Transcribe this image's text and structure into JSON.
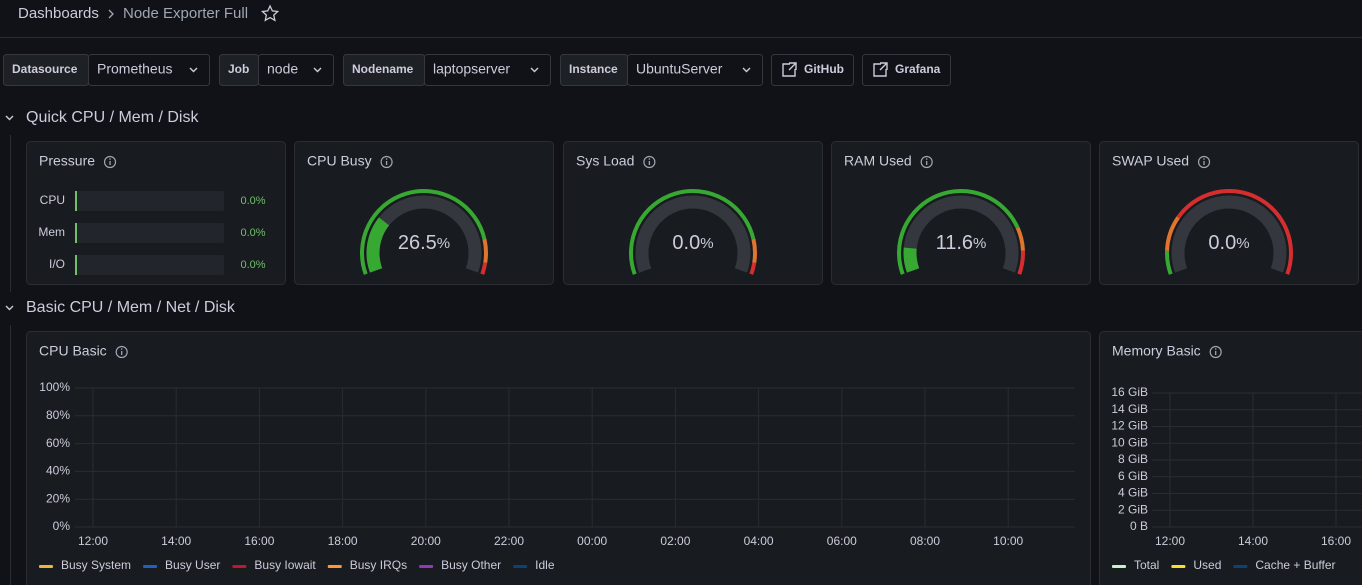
{
  "header": {
    "breadcrumb": [
      "Dashboards",
      "Node Exporter Full"
    ]
  },
  "variables": [
    {
      "label": "Datasource",
      "value": "Prometheus"
    },
    {
      "label": "Job",
      "value": "node"
    },
    {
      "label": "Nodename",
      "value": "laptopserver"
    },
    {
      "label": "Instance",
      "value": "UbuntuServer"
    }
  ],
  "links": [
    "GitHub",
    "Grafana"
  ],
  "rows": [
    {
      "title": "Quick CPU / Mem / Disk"
    },
    {
      "title": "Basic CPU / Mem / Net / Disk"
    }
  ],
  "pressure": {
    "title": "Pressure",
    "range": [
      0,
      100
    ],
    "color": "#73bf69",
    "bars": [
      {
        "label": "CPU",
        "value": 0,
        "value_label": "0.0%"
      },
      {
        "label": "Mem",
        "value": 0,
        "value_label": "0.0%"
      },
      {
        "label": "I/O",
        "value": 0,
        "value_label": "0.0%"
      }
    ]
  },
  "gauges": [
    {
      "title": "CPU Busy",
      "value": 26.5,
      "unit": "%",
      "range": [
        0,
        100
      ],
      "thresholds": [
        {
          "value": 0,
          "color": "#37a831"
        },
        {
          "value": 85,
          "color": "#e0752d"
        },
        {
          "value": 95,
          "color": "#d62e2e"
        }
      ]
    },
    {
      "title": "Sys Load",
      "value": 0,
      "value_label": "0.0",
      "unit": "%",
      "range": [
        0,
        100
      ],
      "thresholds": [
        {
          "value": 0,
          "color": "#37a831"
        },
        {
          "value": 85,
          "color": "#e0752d"
        },
        {
          "value": 95,
          "color": "#d62e2e"
        }
      ]
    },
    {
      "title": "RAM Used",
      "value": 11.6,
      "unit": "%",
      "range": [
        0,
        100
      ],
      "thresholds": [
        {
          "value": 0,
          "color": "#37a831"
        },
        {
          "value": 80,
          "color": "#e0752d"
        },
        {
          "value": 90,
          "color": "#d62e2e"
        }
      ]
    },
    {
      "title": "SWAP Used",
      "value": 0,
      "value_label": "0.0",
      "unit": "%",
      "range": [
        0,
        100
      ],
      "thresholds": [
        {
          "value": 0,
          "color": "#37a831"
        },
        {
          "value": 10,
          "color": "#e0752d"
        },
        {
          "value": 25,
          "color": "#d62e2e"
        }
      ]
    }
  ],
  "charts": [
    {
      "type": "line",
      "title": "CPU Basic",
      "ylim": [
        0,
        100
      ],
      "yticks": [
        {
          "value": 0,
          "label": "0%"
        },
        {
          "value": 20,
          "label": "20%"
        },
        {
          "value": 40,
          "label": "40%"
        },
        {
          "value": 60,
          "label": "60%"
        },
        {
          "value": 80,
          "label": "80%"
        },
        {
          "value": 100,
          "label": "100%"
        }
      ],
      "xticks": [
        "12:00",
        "14:00",
        "16:00",
        "18:00",
        "20:00",
        "22:00",
        "00:00",
        "02:00",
        "04:00",
        "06:00",
        "08:00",
        "10:00"
      ],
      "grid": true,
      "series": [
        {
          "name": "Busy System",
          "color": "#eab839"
        },
        {
          "name": "Busy User",
          "color": "#1f60c4"
        },
        {
          "name": "Busy Iowait",
          "color": "#c4162a"
        },
        {
          "name": "Busy IRQs",
          "color": "#ff9830"
        },
        {
          "name": "Busy Other",
          "color": "#8f3bb8"
        },
        {
          "name": "Idle",
          "color": "#0a437c"
        }
      ]
    },
    {
      "type": "line",
      "title": "Memory Basic",
      "ylim": [
        0,
        16
      ],
      "yticks": [
        {
          "value": 0,
          "label": "0 B"
        },
        {
          "value": 2,
          "label": "2 GiB"
        },
        {
          "value": 4,
          "label": "4 GiB"
        },
        {
          "value": 6,
          "label": "6 GiB"
        },
        {
          "value": 8,
          "label": "8 GiB"
        },
        {
          "value": 10,
          "label": "10 GiB"
        },
        {
          "value": 12,
          "label": "12 GiB"
        },
        {
          "value": 14,
          "label": "14 GiB"
        },
        {
          "value": 16,
          "label": "16 GiB"
        }
      ],
      "xticks": [
        "12:00",
        "14:00",
        "16:00"
      ],
      "grid": true,
      "series": [
        {
          "name": "Total",
          "color": "#c8f2c2"
        },
        {
          "name": "Used",
          "color": "#fade2a"
        },
        {
          "name": "Cache + Buffer",
          "color": "#0a437c"
        }
      ]
    }
  ]
}
